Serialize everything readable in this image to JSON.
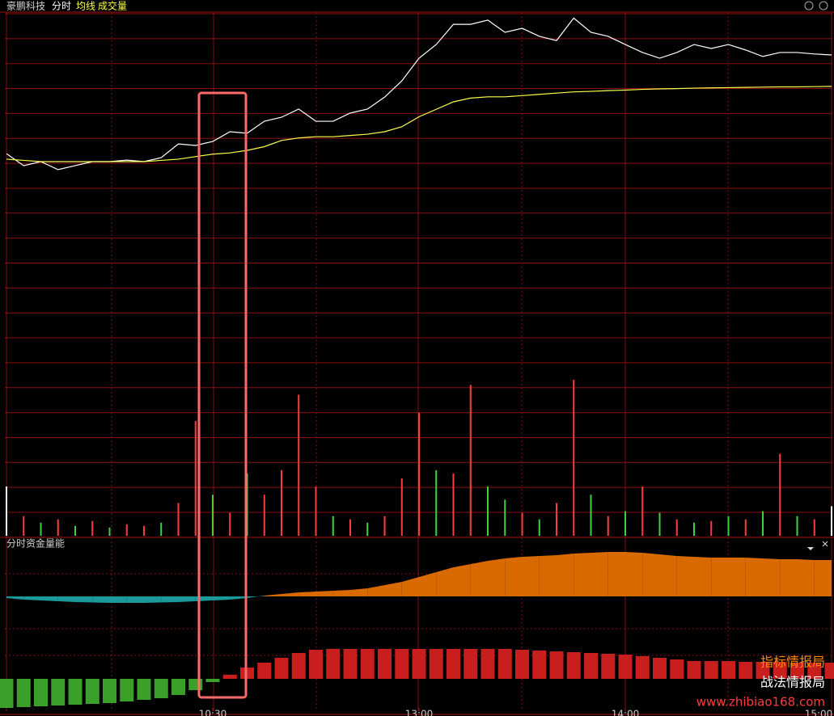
{
  "chart_data": [
    {
      "type": "line",
      "title": "豪鹏科技",
      "x": [
        0,
        5,
        10,
        15,
        20,
        25,
        30,
        35,
        40,
        45,
        50,
        55,
        60,
        65,
        70,
        75,
        80,
        85,
        90,
        95,
        100,
        105,
        110,
        115,
        120,
        125,
        130,
        135,
        140,
        145,
        150,
        155,
        160,
        165,
        170,
        175,
        180,
        185,
        190,
        195,
        200,
        205,
        210,
        215,
        220,
        225,
        230,
        235,
        240
      ],
      "xlim": [
        0,
        240
      ],
      "ylim": [
        -6,
        6
      ],
      "series": [
        {
          "name": "分时",
          "color": "#ffffff",
          "values": [
            0.32,
            -0.16,
            0,
            -0.32,
            -0.16,
            0,
            0,
            0.06,
            0,
            0.16,
            0.71,
            0.65,
            0.81,
            1.2,
            1.14,
            1.62,
            1.78,
            2.11,
            1.62,
            1.62,
            1.95,
            2.11,
            2.59,
            3.24,
            4.15,
            4.7,
            5.51,
            5.51,
            5.68,
            5.19,
            5.35,
            5.03,
            4.86,
            5.76,
            5.19,
            5.03,
            4.7,
            4.38,
            4.15,
            4.38,
            4.7,
            4.54,
            4.7,
            4.48,
            4.22,
            4.38,
            4.38,
            4.32,
            4.28
          ]
        },
        {
          "name": "均线",
          "color": "#ffff4a",
          "values": [
            0.1,
            0.05,
            0,
            0,
            0,
            0,
            0,
            0,
            0,
            0.05,
            0.1,
            0.2,
            0.3,
            0.35,
            0.45,
            0.6,
            0.85,
            0.95,
            1.0,
            1.0,
            1.05,
            1.1,
            1.2,
            1.4,
            1.8,
            2.1,
            2.4,
            2.55,
            2.6,
            2.6,
            2.65,
            2.7,
            2.75,
            2.8,
            2.82,
            2.85,
            2.87,
            2.9,
            2.92,
            2.93,
            2.95,
            2.96,
            2.97,
            2.98,
            2.99,
            3.0,
            3.0,
            3.01,
            3.02
          ]
        }
      ]
    },
    {
      "type": "bar",
      "ylim": [
        0,
        100
      ],
      "series": [
        {
          "name": "成交量",
          "color": "#ffff4a",
          "values": [
            30,
            12,
            8,
            10,
            6,
            9,
            5,
            7,
            6,
            8,
            20,
            70,
            25,
            14,
            38,
            25,
            40,
            86,
            30,
            12,
            10,
            8,
            12,
            35,
            75,
            40,
            38,
            92,
            30,
            22,
            14,
            10,
            20,
            95,
            25,
            12,
            15,
            30,
            14,
            10,
            8,
            9,
            12,
            10,
            15,
            50,
            12,
            10,
            18
          ],
          "colors": [
            "#ffffff",
            "#ff3d3d",
            "#3dd23d",
            "#ff3d3d",
            "#3dd23d",
            "#ff3d3d",
            "#3dd23d",
            "#ff3d3d",
            "#ff3d3d",
            "#3dd23d",
            "#ff3d3d",
            "#ff3d3d",
            "#3dd23d",
            "#ff3d3d",
            "#3dd23d",
            "#ff3d3d",
            "#ff3d3d",
            "#ff3d3d",
            "#ff3d3d",
            "#3dd23d",
            "#ff3d3d",
            "#3dd23d",
            "#ff3d3d",
            "#ff3d3d",
            "#ff3d3d",
            "#3dd23d",
            "#ff3d3d",
            "#ff3d3d",
            "#3dd23d",
            "#3dd23d",
            "#ff3d3d",
            "#3dd23d",
            "#ff3d3d",
            "#ff3d3d",
            "#3dd23d",
            "#ff3d3d",
            "#3dd23d",
            "#ff3d3d",
            "#3dd23d",
            "#ff3d3d",
            "#3dd23d",
            "#ff3d3d",
            "#3dd23d",
            "#ff3d3d",
            "#3dd23d",
            "#ff3d3d",
            "#3dd23d",
            "#ff3d3d",
            "#ffffff"
          ]
        }
      ]
    },
    {
      "type": "area",
      "title": "分时资金量能",
      "ylim": [
        -60,
        60
      ],
      "y2lim": [
        -40,
        40
      ],
      "xticks": [
        {
          "value": 60,
          "label": "10:30"
        },
        {
          "value": 120,
          "label": "13:00"
        },
        {
          "value": 180,
          "label": "14:00"
        },
        {
          "value": 240,
          "label": "15:00"
        }
      ],
      "series": [
        {
          "color": "#d86a00",
          "negative_color": "#1a9a9a",
          "values": [
            -2,
            -4,
            -5,
            -6,
            -7,
            -7.5,
            -8,
            -8,
            -8,
            -7.5,
            -7,
            -6,
            -5,
            -4,
            -2,
            1,
            3,
            5,
            6,
            7,
            8,
            10,
            14,
            18,
            24,
            30,
            36,
            40,
            44,
            47,
            49,
            50,
            51,
            53,
            54,
            55,
            55,
            54,
            52,
            50,
            49,
            48,
            48,
            48,
            47,
            46,
            46,
            45,
            45
          ]
        },
        {
          "axis": "y2",
          "color": "#c81e1e",
          "negative_color": "#3aa02a",
          "values": [
            -36,
            -35,
            -34,
            -33,
            -32,
            -31,
            -30,
            -28,
            -26,
            -24,
            -20,
            -14,
            -4,
            5,
            14,
            20,
            26,
            32,
            36,
            37,
            37,
            37,
            37,
            37,
            37,
            37,
            37,
            37,
            37,
            37,
            36,
            35,
            34,
            33,
            32,
            31,
            30,
            28,
            26,
            24,
            22,
            22,
            22,
            21,
            21,
            21,
            20,
            20,
            20
          ]
        }
      ],
      "annotations": [
        "指标情报局",
        "战法情报局",
        "www.zhibiao168.com"
      ]
    }
  ]
}
